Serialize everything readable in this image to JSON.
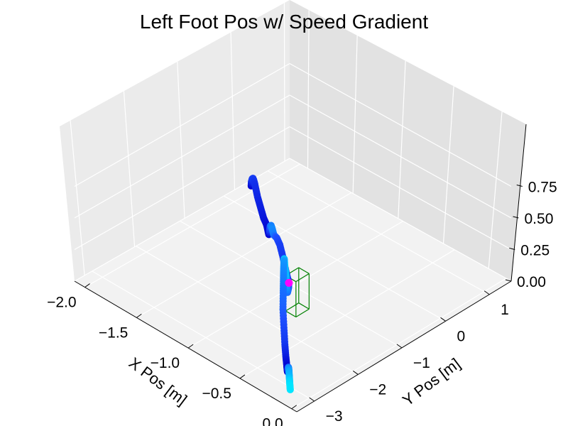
{
  "chart_data": {
    "type": "scatter",
    "projection": "3d",
    "title": "Left Foot Pos w/ Speed Gradient",
    "xlabel": "X Pos [m]",
    "ylabel": "Y Pos [m]",
    "zlabel": "",
    "x_ticks": [
      "−2.0",
      "−1.5",
      "−1.0",
      "−0.5",
      "0.0"
    ],
    "y_ticks": [
      "−3",
      "−2",
      "−1",
      "0",
      "1"
    ],
    "z_ticks": [
      "0.00",
      "0.25",
      "0.50",
      "0.75"
    ],
    "xlim": [
      -2.1,
      0.05
    ],
    "ylim": [
      -3.4,
      1.5
    ],
    "zlim": [
      0.0,
      1.0
    ],
    "grid": true,
    "color_gradient": [
      "#0000cd",
      "#1e50ff",
      "#00e5ff"
    ],
    "colors": {
      "slow": "#0000cd",
      "fast": "#00e5ff",
      "marker": "#ff00ff",
      "box": "#008000"
    },
    "series": [
      {
        "x": [
          -2.0,
          -1.98,
          -1.96,
          -1.94,
          -1.92,
          -1.9,
          -1.82,
          -1.74,
          -1.66,
          -1.58,
          -1.54,
          -1.52,
          -1.5,
          -1.48,
          -1.46,
          -1.43,
          -1.4,
          -1.32,
          -1.24,
          -1.16,
          -1.08,
          -1.0,
          -0.97,
          -0.95,
          -0.93,
          -0.9,
          -0.87,
          -0.84,
          -0.8,
          -0.76,
          -0.72,
          -0.68,
          -0.64,
          -0.6,
          -0.54,
          -0.48,
          -0.42,
          -0.36,
          -0.32,
          -0.28,
          -0.26,
          -0.24,
          -0.22,
          -0.2,
          -0.18,
          -0.16,
          -0.14
        ],
        "y": [
          0.4,
          0.36,
          0.33,
          0.3,
          0.27,
          0.25,
          0.12,
          0.0,
          -0.12,
          -0.24,
          -0.3,
          -0.33,
          -0.36,
          -0.39,
          -0.42,
          -0.46,
          -0.5,
          -0.62,
          -0.74,
          -0.86,
          -0.98,
          -1.1,
          -1.18,
          -1.25,
          -1.32,
          -1.4,
          -1.5,
          -1.58,
          -1.68,
          -1.78,
          -1.88,
          -1.98,
          -2.08,
          -2.18,
          -2.3,
          -2.42,
          -2.54,
          -2.66,
          -2.74,
          -2.82,
          -2.86,
          -2.9,
          -2.94,
          -2.98,
          -3.02,
          -3.06,
          -3.1
        ],
        "z": [
          0.0,
          0.05,
          0.09,
          0.11,
          0.11,
          0.09,
          0.06,
          0.04,
          0.02,
          0.03,
          0.01,
          0.0,
          0.05,
          0.1,
          0.12,
          0.11,
          0.09,
          0.13,
          0.14,
          0.11,
          0.06,
          0.03,
          0.02,
          0.01,
          0.09,
          0.2,
          0.3,
          0.38,
          0.44,
          0.46,
          0.44,
          0.4,
          0.33,
          0.24,
          0.15,
          0.07,
          0.03,
          0.01,
          0.0,
          0.06,
          0.09,
          0.1,
          0.09,
          0.07,
          0.05,
          0.03,
          0.02
        ],
        "speed": [
          0.0,
          0.2,
          0.35,
          0.4,
          0.35,
          0.3,
          0.25,
          0.2,
          0.15,
          0.1,
          0.05,
          0.0,
          0.35,
          0.55,
          0.65,
          0.7,
          0.65,
          0.5,
          0.4,
          0.35,
          0.35,
          0.4,
          0.5,
          0.6,
          0.75,
          0.85,
          0.9,
          0.95,
          0.9,
          0.75,
          0.7,
          0.65,
          0.6,
          0.55,
          0.45,
          0.35,
          0.2,
          0.05,
          0.0,
          0.3,
          0.55,
          0.7,
          0.8,
          0.85,
          0.95,
          1.0,
          1.0
        ]
      }
    ],
    "marker_point": {
      "x": -1.0,
      "y": -1.1,
      "z": 0.03
    },
    "box": {
      "x": [
        -0.82,
        -0.72
      ],
      "y": [
        -1.6,
        -1.3
      ],
      "z": [
        0.0,
        0.28
      ]
    }
  }
}
